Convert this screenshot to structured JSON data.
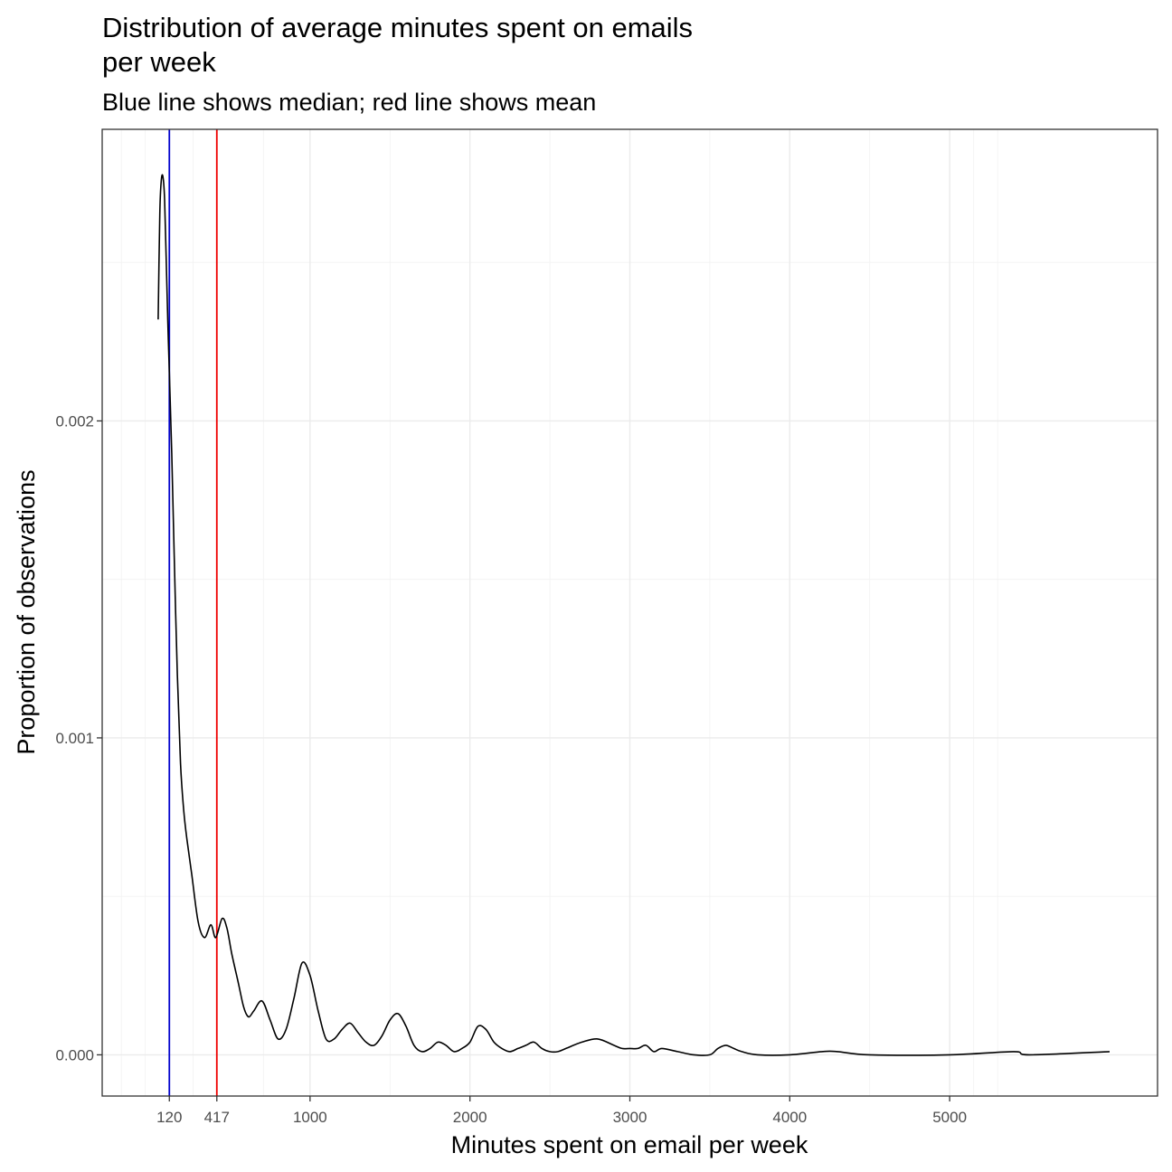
{
  "chart_data": {
    "type": "line",
    "title_lines": [
      "Distribution of average minutes spent on emails",
      "per week"
    ],
    "subtitle": "Blue line shows median; red line shows mean",
    "xlabel": "Minutes spent on email per week",
    "ylabel": "Proportion of observations",
    "xlim": [
      -300,
      6300
    ],
    "ylim": [
      -0.00013,
      0.00292
    ],
    "x_ticks": [
      {
        "value": 120,
        "label": "120"
      },
      {
        "value": 417,
        "label": "417"
      },
      {
        "value": 1000,
        "label": "1000"
      },
      {
        "value": 2000,
        "label": "2000"
      },
      {
        "value": 3000,
        "label": "3000"
      },
      {
        "value": 4000,
        "label": "4000"
      },
      {
        "value": 5000,
        "label": "5000"
      }
    ],
    "x_minor_grid": [
      -180,
      -30,
      268.5,
      708.5,
      1500,
      2500,
      3500,
      4500,
      5150,
      5300
    ],
    "y_ticks": [
      {
        "value": 0.0,
        "label": "0.000"
      },
      {
        "value": 0.001,
        "label": "0.001"
      },
      {
        "value": 0.002,
        "label": "0.002"
      }
    ],
    "y_minor_grid": [
      0.0005,
      0.0015,
      0.0025
    ],
    "grid": true,
    "legend": "none",
    "reference_lines": [
      {
        "name": "median",
        "x": 120,
        "color": "#0000cc"
      },
      {
        "name": "mean",
        "x": 417,
        "color": "#ee0000"
      }
    ],
    "series": [
      {
        "color": "#000000",
        "x": [
          50,
          60,
          70,
          80,
          90,
          100,
          110,
          120,
          135,
          150,
          170,
          190,
          210,
          230,
          260,
          300,
          340,
          380,
          410,
          450,
          480,
          510,
          550,
          580,
          600,
          620,
          650,
          700,
          750,
          800,
          850,
          900,
          950,
          1000,
          1050,
          1100,
          1150,
          1200,
          1250,
          1300,
          1350,
          1400,
          1450,
          1500,
          1550,
          1600,
          1650,
          1700,
          1750,
          1800,
          1850,
          1900,
          1950,
          2000,
          2050,
          2100,
          2150,
          2200,
          2250,
          2300,
          2350,
          2400,
          2450,
          2500,
          2550,
          2600,
          2700,
          2800,
          2900,
          2950,
          3000,
          3050,
          3100,
          3150,
          3200,
          3300,
          3400,
          3500,
          3550,
          3600,
          3650,
          3700,
          3800,
          4000,
          4200,
          4300,
          4500,
          5000,
          5400,
          5500,
          6000
        ],
        "y": [
          0.00232,
          0.00265,
          0.00276,
          0.00277,
          0.0027,
          0.00252,
          0.00232,
          0.00215,
          0.0019,
          0.00158,
          0.0012,
          0.00092,
          0.00077,
          0.00068,
          0.00057,
          0.00042,
          0.00037,
          0.00041,
          0.00037,
          0.00043,
          0.0004,
          0.00032,
          0.00023,
          0.00016,
          0.00013,
          0.00012,
          0.00014,
          0.00017,
          0.00011,
          5e-05,
          8e-05,
          0.00018,
          0.00029,
          0.00025,
          0.00014,
          5e-05,
          5e-05,
          8e-05,
          0.0001,
          7e-05,
          4e-05,
          3e-05,
          6e-05,
          0.00011,
          0.00013,
          9e-05,
          3e-05,
          1e-05,
          2e-05,
          4e-05,
          3e-05,
          1e-05,
          2e-05,
          4e-05,
          9e-05,
          8e-05,
          4e-05,
          2e-05,
          1e-05,
          2e-05,
          3e-05,
          4e-05,
          2e-05,
          1e-05,
          1e-05,
          2e-05,
          4e-05,
          5e-05,
          3e-05,
          2e-05,
          2e-05,
          2e-05,
          3e-05,
          1e-05,
          2e-05,
          1e-05,
          0.0,
          0.0,
          2e-05,
          3e-05,
          2e-05,
          1e-05,
          0.0,
          0.0,
          1e-05,
          1e-05,
          0.0,
          0.0,
          1e-05,
          0.0,
          1e-05
        ]
      }
    ]
  }
}
